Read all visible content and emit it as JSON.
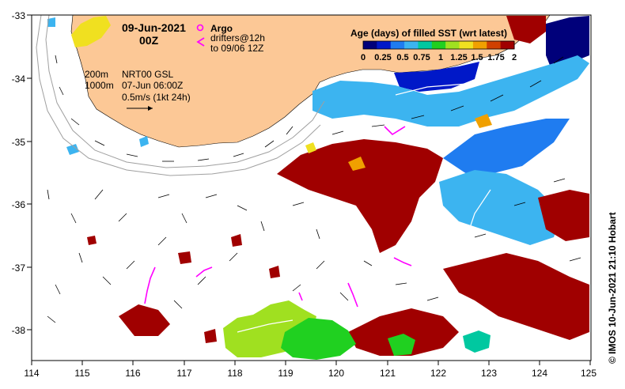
{
  "header": {
    "date": "09-Jun-2021",
    "time": "00Z"
  },
  "legend_argo": {
    "argo_label": "Argo",
    "drifters_label": "drifters@12h",
    "drifters_to": "to 09/06 12Z"
  },
  "contour_legend": {
    "isobath_200": "200m",
    "isobath_1000": "1000m",
    "product": "NRT00 GSL",
    "product_time": "07-Jun 06:00Z",
    "vector_scale": "0.5m/s (1kt 24h)"
  },
  "colorbar": {
    "title": "Age (days) of filled SST (wrt latest)",
    "ticks": [
      "0",
      "0.25",
      "0.5",
      "0.75",
      "1",
      "1.25",
      "1.5",
      "1.75",
      "2"
    ],
    "colors": [
      "#00007a",
      "#0018c8",
      "#1f7cf0",
      "#3cb4f0",
      "#00c8a0",
      "#20d020",
      "#a0e020",
      "#f0e020",
      "#f0a000",
      "#d04000",
      "#a00000"
    ]
  },
  "axes": {
    "x_ticks": [
      "114",
      "115",
      "116",
      "117",
      "118",
      "119",
      "120",
      "121",
      "122",
      "123",
      "124",
      "125"
    ],
    "y_ticks": [
      "-33",
      "-34",
      "-35",
      "-36",
      "-37",
      "-38"
    ],
    "lon_range": [
      114,
      125
    ],
    "lat_range": [
      -38.5,
      -33
    ]
  },
  "credit": "© IMOS 10-Jun-2021 21:10 Hobart",
  "colors": {
    "land": "#fcc896",
    "ocean": "#ffffff",
    "argo": "#ff00ff",
    "isobath": "#a0a0a0"
  }
}
